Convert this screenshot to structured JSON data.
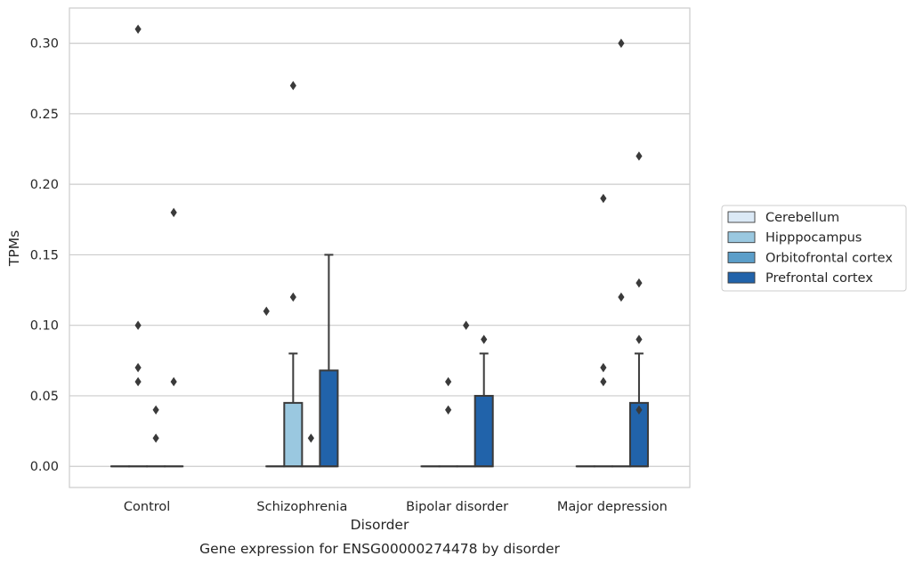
{
  "chart_data": {
    "type": "box",
    "title": "",
    "caption": "Gene expression for ENSG00000274478 by disorder",
    "xlabel": "Disorder",
    "ylabel": "TPMs",
    "ylim": [
      -0.015,
      0.325
    ],
    "yticks": [
      "0.00",
      "0.05",
      "0.10",
      "0.15",
      "0.20",
      "0.25",
      "0.30"
    ],
    "grid": "horizontal",
    "legend_position": "outside-right",
    "categories": [
      "Control",
      "Schizophrenia",
      "Bipolar disorder",
      "Major depression"
    ],
    "series": [
      {
        "name": "Cerebellum",
        "color": "#dbe9f6",
        "boxes": [
          {
            "q1": 0,
            "median": 0,
            "q3": 0,
            "whisker_low": 0,
            "whisker_high": 0,
            "outliers": []
          },
          {
            "q1": 0,
            "median": 0,
            "q3": 0,
            "whisker_low": 0,
            "whisker_high": 0,
            "outliers": []
          },
          {
            "q1": 0,
            "median": 0,
            "q3": 0,
            "whisker_low": 0,
            "whisker_high": 0,
            "outliers": []
          },
          {
            "q1": 0,
            "median": 0,
            "q3": 0,
            "whisker_low": 0,
            "whisker_high": 0,
            "outliers": []
          }
        ]
      },
      {
        "name": "Hipppocampus",
        "color": "#9ac8e0",
        "boxes": [
          {
            "q1": 0,
            "median": 0,
            "q3": 0,
            "whisker_low": 0,
            "whisker_high": 0,
            "outliers": [
              0.31,
              0.1,
              0.07,
              0.06
            ]
          },
          {
            "q1": 0,
            "median": 0,
            "q3": 0.045,
            "whisker_low": 0,
            "whisker_high": 0.08,
            "outliers": [
              0.27,
              0.12
            ]
          },
          {
            "q1": 0,
            "median": 0,
            "q3": 0,
            "whisker_low": 0,
            "whisker_high": 0,
            "outliers": [
              0.06,
              0.04
            ]
          },
          {
            "q1": 0,
            "median": 0,
            "q3": 0,
            "whisker_low": 0,
            "whisker_high": 0,
            "outliers": [
              0.19,
              0.07,
              0.06
            ]
          }
        ]
      },
      {
        "name": "Orbitofrontal cortex",
        "color": "#5b9ec9",
        "boxes": [
          {
            "q1": 0,
            "median": 0,
            "q3": 0,
            "whisker_low": 0,
            "whisker_high": 0,
            "outliers": [
              0.04,
              0.02
            ]
          },
          {
            "q1": 0,
            "median": 0,
            "q3": 0,
            "whisker_low": 0,
            "whisker_high": 0,
            "outliers": [
              0.02
            ]
          },
          {
            "q1": 0,
            "median": 0,
            "q3": 0,
            "whisker_low": 0,
            "whisker_high": 0,
            "outliers": [
              0.1
            ]
          },
          {
            "q1": 0,
            "median": 0,
            "q3": 0,
            "whisker_low": 0,
            "whisker_high": 0,
            "outliers": [
              0.3,
              0.12
            ]
          }
        ]
      },
      {
        "name": "Prefrontal cortex",
        "color": "#2163aa",
        "boxes": [
          {
            "q1": 0,
            "median": 0,
            "q3": 0,
            "whisker_low": 0,
            "whisker_high": 0,
            "outliers": [
              0.18,
              0.06
            ]
          },
          {
            "q1": 0,
            "median": 0,
            "q3": 0.068,
            "whisker_low": 0,
            "whisker_high": 0.15,
            "outliers": []
          },
          {
            "q1": 0,
            "median": 0,
            "q3": 0.05,
            "whisker_low": 0,
            "whisker_high": 0.08,
            "outliers": [
              0.09
            ]
          },
          {
            "q1": 0,
            "median": 0,
            "q3": 0.045,
            "whisker_low": 0,
            "whisker_high": 0.08,
            "outliers": [
              0.22,
              0.09,
              0.04,
              0.13
            ]
          }
        ]
      }
    ],
    "extra_outliers": [
      {
        "category_index": 1,
        "x_offset": -0.5,
        "value": 0.11
      }
    ]
  }
}
